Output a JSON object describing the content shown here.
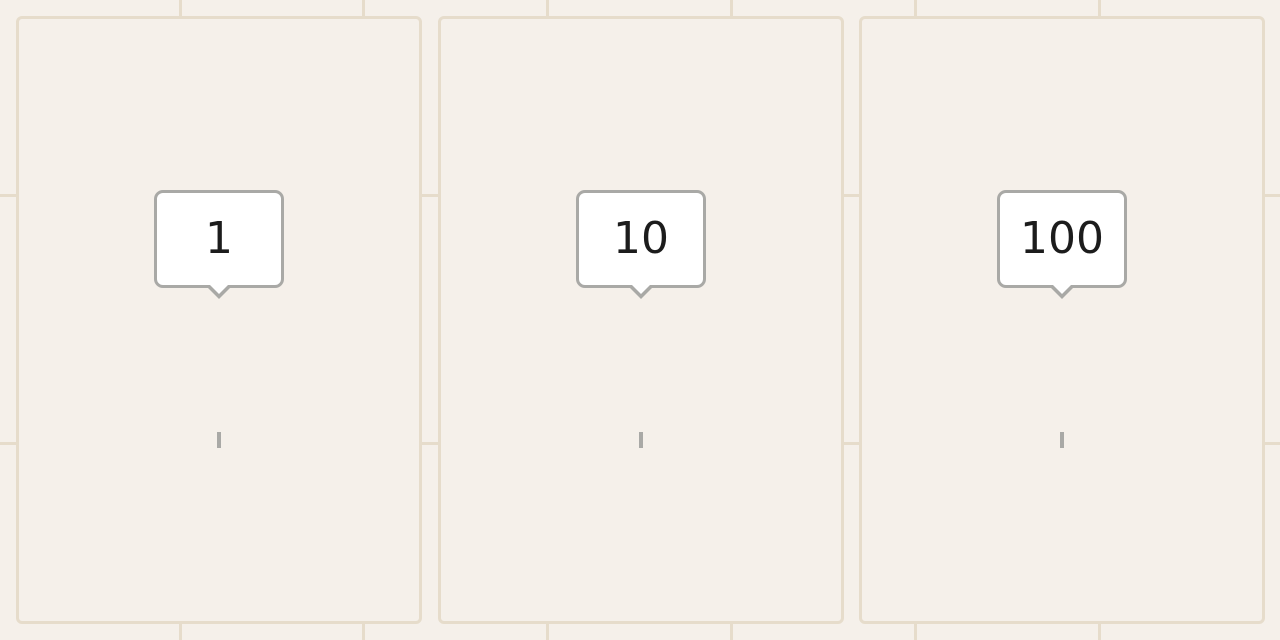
{
  "colors": {
    "background": "#f5f0ea",
    "grid_line": "#e6dccb",
    "tooltip_border": "#a9a9a6",
    "tooltip_fill": "#ffffff",
    "text": "#1c1c1c"
  },
  "panels": [
    {
      "tooltip_value": "1"
    },
    {
      "tooltip_value": "10"
    },
    {
      "tooltip_value": "100"
    }
  ]
}
